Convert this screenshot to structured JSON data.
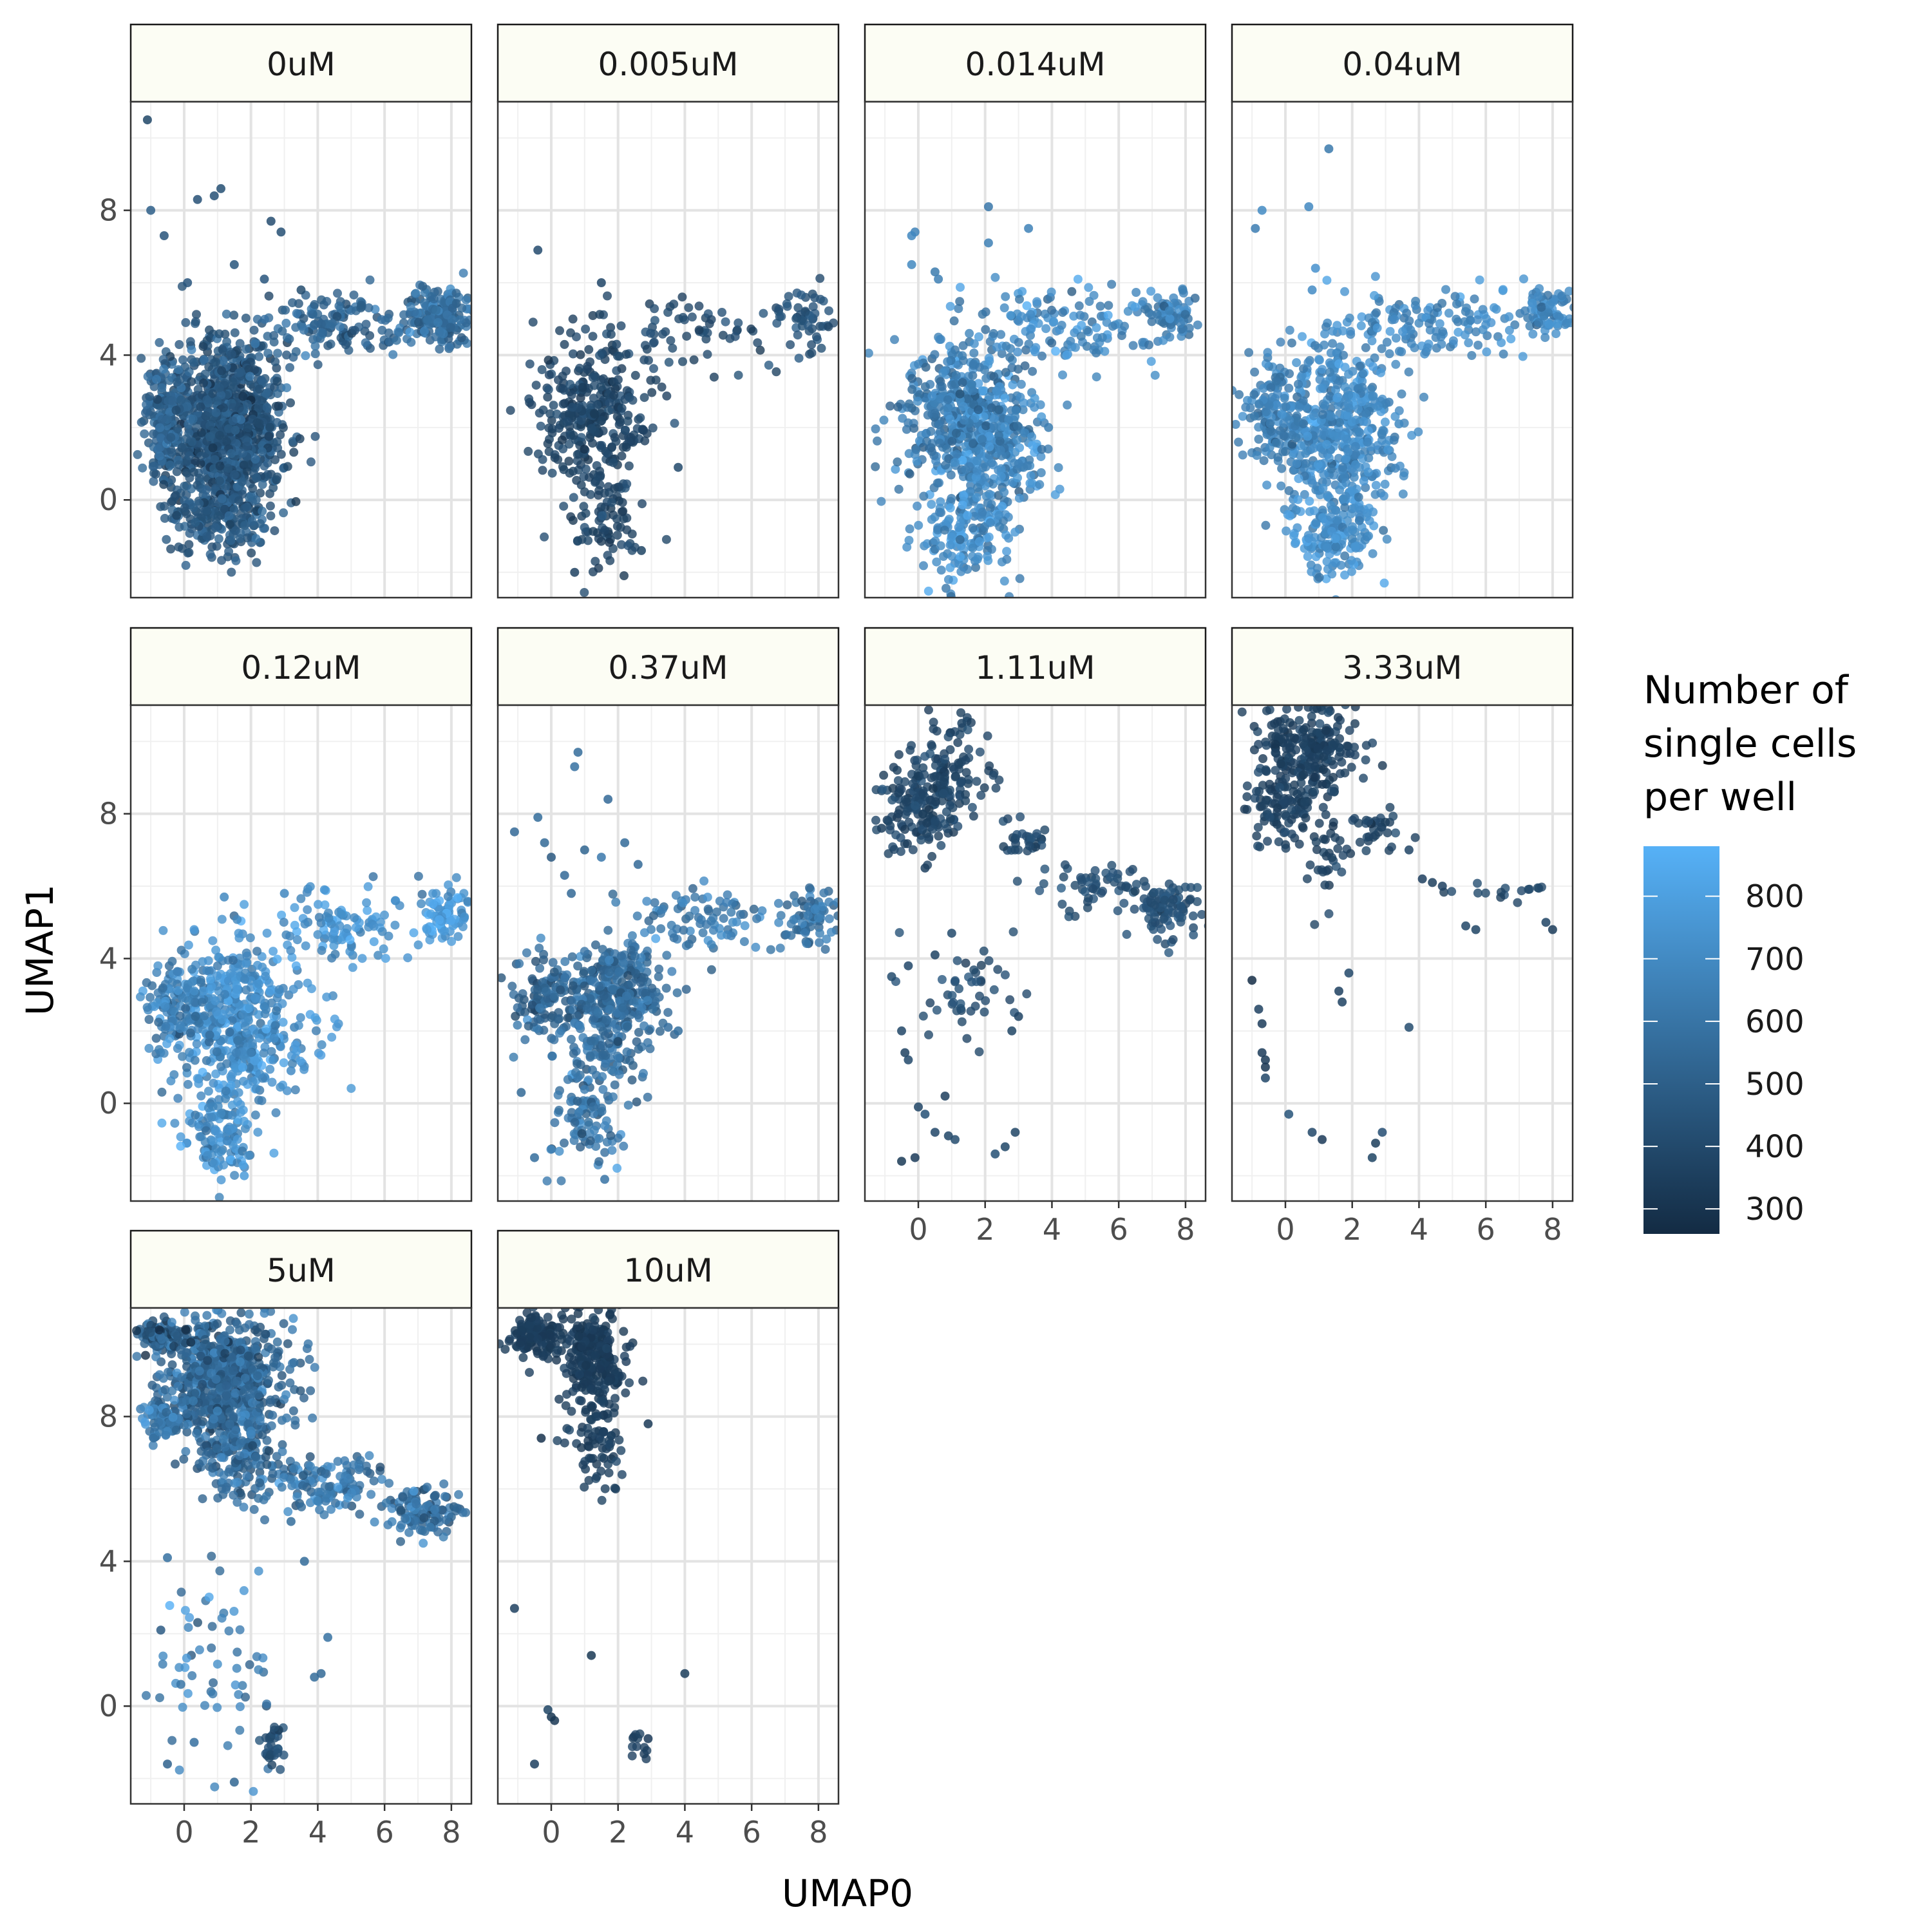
{
  "chart_data": {
    "type": "scatter",
    "layout": "facet-grid",
    "xlabel": "UMAP0",
    "ylabel": "UMAP1",
    "xlim": [
      -1.6,
      8.6
    ],
    "ylim": [
      -2.7,
      11.0
    ],
    "x_ticks": [
      0,
      2,
      4,
      6,
      8
    ],
    "y_ticks": [
      0,
      4,
      8
    ],
    "grid": true,
    "legend": {
      "title_lines": [
        "Number of",
        "single cells",
        "per well"
      ],
      "placement": "right",
      "min": 260,
      "max": 880,
      "ticks": [
        300,
        400,
        500,
        600,
        700,
        800
      ],
      "low_color": "#132B43",
      "high_color": "#56B1F7"
    },
    "panels": [
      {
        "label": "0uM",
        "color_value": 450,
        "clusters": [
          {
            "cx": 1.3,
            "cy": 2.0,
            "sx": 0.9,
            "sy": 1.3,
            "n": 950,
            "v": 450,
            "sv": 60
          },
          {
            "cx": -0.6,
            "cy": 2.3,
            "sx": 0.3,
            "sy": 0.8,
            "n": 160,
            "v": 520,
            "sv": 60
          },
          {
            "cx": 1.0,
            "cy": -0.5,
            "sx": 0.8,
            "sy": 0.5,
            "n": 160,
            "v": 470,
            "sv": 60
          },
          {
            "cx": 4.5,
            "cy": 4.9,
            "sx": 1.4,
            "sy": 0.45,
            "n": 140,
            "v": 520,
            "sv": 60
          },
          {
            "cx": 7.7,
            "cy": 5.1,
            "sx": 0.5,
            "sy": 0.4,
            "n": 190,
            "v": 560,
            "sv": 60
          }
        ],
        "points": [
          [
            -1.1,
            10.5
          ],
          [
            -1.0,
            8.0
          ],
          [
            -0.6,
            7.3
          ],
          [
            0.4,
            8.3
          ],
          [
            1.1,
            8.6
          ],
          [
            2.9,
            7.4
          ],
          [
            2.6,
            7.7
          ],
          [
            0.1,
            6.0
          ],
          [
            1.5,
            6.5
          ],
          [
            3.5,
            5.8
          ],
          [
            2.4,
            6.1
          ],
          [
            0.9,
            8.4
          ]
        ]
      },
      {
        "label": "0.005uM",
        "color_value": 380,
        "clusters": [
          {
            "cx": 1.3,
            "cy": 2.3,
            "sx": 0.9,
            "sy": 1.1,
            "n": 320,
            "v": 380,
            "sv": 35
          },
          {
            "cx": 1.5,
            "cy": -0.7,
            "sx": 0.5,
            "sy": 0.7,
            "n": 80,
            "v": 380,
            "sv": 35
          },
          {
            "cx": 4.4,
            "cy": 4.7,
            "sx": 1.3,
            "sy": 0.5,
            "n": 60,
            "v": 400,
            "sv": 35
          },
          {
            "cx": 7.6,
            "cy": 5.1,
            "sx": 0.5,
            "sy": 0.4,
            "n": 50,
            "v": 440,
            "sv": 35
          }
        ],
        "points": [
          [
            -0.4,
            6.9
          ],
          [
            1.5,
            6.0
          ],
          [
            3.8,
            0.9
          ],
          [
            2.7,
            -1.4
          ],
          [
            0.7,
            -2.0
          ]
        ]
      },
      {
        "label": "0.014uM",
        "color_value": 650,
        "clusters": [
          {
            "cx": 1.8,
            "cy": 1.9,
            "sx": 0.9,
            "sy": 1.3,
            "n": 520,
            "v": 680,
            "sv": 80
          },
          {
            "cx": 0.8,
            "cy": 2.5,
            "sx": 0.8,
            "sy": 0.8,
            "n": 150,
            "v": 620,
            "sv": 80
          },
          {
            "cx": 1.5,
            "cy": -1.0,
            "sx": 0.6,
            "sy": 0.6,
            "n": 130,
            "v": 720,
            "sv": 80
          },
          {
            "cx": 4.5,
            "cy": 4.8,
            "sx": 1.3,
            "sy": 0.5,
            "n": 120,
            "v": 700,
            "sv": 80
          },
          {
            "cx": 7.6,
            "cy": 5.1,
            "sx": 0.4,
            "sy": 0.35,
            "n": 70,
            "v": 640,
            "sv": 80
          }
        ],
        "points": [
          [
            -0.1,
            7.4
          ],
          [
            -0.2,
            7.3
          ],
          [
            2.1,
            8.1
          ],
          [
            2.1,
            7.1
          ],
          [
            3.3,
            7.5
          ],
          [
            0.5,
            6.3
          ],
          [
            0.6,
            6.1
          ],
          [
            -0.2,
            6.5
          ],
          [
            3.0,
            1.0
          ],
          [
            3.9,
            2.0
          ]
        ]
      },
      {
        "label": "0.04uM",
        "color_value": 680,
        "clusters": [
          {
            "cx": 1.6,
            "cy": 1.9,
            "sx": 0.9,
            "sy": 1.3,
            "n": 520,
            "v": 700,
            "sv": 60
          },
          {
            "cx": -0.4,
            "cy": 2.4,
            "sx": 0.5,
            "sy": 0.8,
            "n": 130,
            "v": 650,
            "sv": 60
          },
          {
            "cx": 1.4,
            "cy": -1.0,
            "sx": 0.6,
            "sy": 0.6,
            "n": 130,
            "v": 720,
            "sv": 60
          },
          {
            "cx": 4.6,
            "cy": 4.9,
            "sx": 1.3,
            "sy": 0.5,
            "n": 120,
            "v": 690,
            "sv": 60
          },
          {
            "cx": 7.8,
            "cy": 5.2,
            "sx": 0.4,
            "sy": 0.35,
            "n": 80,
            "v": 680,
            "sv": 60
          }
        ],
        "points": [
          [
            -0.7,
            8.0
          ],
          [
            -0.9,
            7.5
          ],
          [
            0.7,
            8.1
          ],
          [
            1.3,
            9.7
          ],
          [
            0.9,
            6.4
          ],
          [
            0.8,
            5.8
          ],
          [
            3.4,
            2.1
          ],
          [
            3.1,
            2.7
          ]
        ]
      },
      {
        "label": "0.12uM",
        "color_value": 720,
        "clusters": [
          {
            "cx": 1.6,
            "cy": 2.2,
            "sx": 0.9,
            "sy": 1.1,
            "n": 480,
            "v": 720,
            "sv": 70
          },
          {
            "cx": -0.2,
            "cy": 2.6,
            "sx": 0.5,
            "sy": 0.7,
            "n": 120,
            "v": 650,
            "sv": 70
          },
          {
            "cx": 1.2,
            "cy": -0.9,
            "sx": 0.6,
            "sy": 0.6,
            "n": 120,
            "v": 700,
            "sv": 70
          },
          {
            "cx": 4.6,
            "cy": 4.9,
            "sx": 1.3,
            "sy": 0.5,
            "n": 110,
            "v": 750,
            "sv": 70
          },
          {
            "cx": 7.8,
            "cy": 5.3,
            "sx": 0.4,
            "sy": 0.4,
            "n": 80,
            "v": 760,
            "sv": 70
          }
        ],
        "points": [
          [
            0.3,
            4.8
          ],
          [
            1.2,
            5.7
          ],
          [
            3.0,
            5.8
          ],
          [
            4.2,
            5.9
          ],
          [
            3.3,
            2.1
          ],
          [
            3.2,
            0.9
          ],
          [
            1.8,
            -2.0
          ]
        ]
      },
      {
        "label": "0.37uM",
        "color_value": 560,
        "clusters": [
          {
            "cx": 1.9,
            "cy": 3.1,
            "sx": 0.7,
            "sy": 0.7,
            "n": 300,
            "v": 560,
            "sv": 70
          },
          {
            "cx": -0.2,
            "cy": 2.9,
            "sx": 0.5,
            "sy": 0.6,
            "n": 110,
            "v": 530,
            "sv": 70
          },
          {
            "cx": 1.5,
            "cy": 1.5,
            "sx": 0.7,
            "sy": 0.6,
            "n": 90,
            "v": 560,
            "sv": 70
          },
          {
            "cx": 1.1,
            "cy": -0.5,
            "sx": 0.6,
            "sy": 0.6,
            "n": 90,
            "v": 600,
            "sv": 70
          },
          {
            "cx": 4.6,
            "cy": 5.0,
            "sx": 1.2,
            "sy": 0.45,
            "n": 90,
            "v": 620,
            "sv": 70
          },
          {
            "cx": 7.8,
            "cy": 5.2,
            "sx": 0.4,
            "sy": 0.4,
            "n": 70,
            "v": 600,
            "sv": 70
          }
        ],
        "points": [
          [
            -1.1,
            7.5
          ],
          [
            -0.4,
            7.9
          ],
          [
            -0.2,
            7.2
          ],
          [
            0.0,
            6.8
          ],
          [
            0.8,
            9.7
          ],
          [
            0.7,
            9.3
          ],
          [
            1.7,
            8.4
          ],
          [
            1.0,
            7.0
          ],
          [
            1.5,
            6.8
          ],
          [
            0.4,
            6.3
          ],
          [
            0.6,
            5.8
          ],
          [
            2.6,
            6.6
          ],
          [
            2.2,
            7.2
          ],
          [
            3.8,
            2.0
          ],
          [
            3.5,
            2.1
          ],
          [
            -0.5,
            -1.5
          ],
          [
            1.6,
            -2.1
          ],
          [
            -0.9,
            0.3
          ]
        ]
      },
      {
        "label": "1.11uM",
        "color_value": 380,
        "clusters": [
          {
            "cx": 0.1,
            "cy": 8.2,
            "sx": 0.6,
            "sy": 0.6,
            "n": 150,
            "v": 380,
            "sv": 30
          },
          {
            "cx": 1.1,
            "cy": 9.3,
            "sx": 0.6,
            "sy": 0.7,
            "n": 90,
            "v": 380,
            "sv": 30
          },
          {
            "cx": 3.2,
            "cy": 7.3,
            "sx": 0.4,
            "sy": 0.3,
            "n": 30,
            "v": 400,
            "sv": 30
          },
          {
            "cx": 5.3,
            "cy": 5.9,
            "sx": 1.0,
            "sy": 0.3,
            "n": 60,
            "v": 420,
            "sv": 30
          },
          {
            "cx": 7.5,
            "cy": 5.4,
            "sx": 0.45,
            "sy": 0.4,
            "n": 80,
            "v": 430,
            "sv": 30
          },
          {
            "cx": 1.6,
            "cy": 3.3,
            "sx": 0.9,
            "sy": 0.6,
            "n": 45,
            "v": 410,
            "sv": 30
          }
        ],
        "points": [
          [
            -0.9,
            7.8
          ],
          [
            -1.1,
            7.6
          ],
          [
            -0.6,
            8.0
          ],
          [
            1.3,
            10.5
          ],
          [
            0.2,
            6.5
          ],
          [
            1.0,
            4.7
          ],
          [
            0.5,
            4.1
          ],
          [
            -0.3,
            3.8
          ],
          [
            -0.5,
            2.0
          ],
          [
            -0.4,
            1.4
          ],
          [
            -0.3,
            1.2
          ],
          [
            0.0,
            -0.1
          ],
          [
            0.2,
            -0.3
          ],
          [
            0.8,
            0.2
          ],
          [
            0.5,
            -0.8
          ],
          [
            0.9,
            -0.9
          ],
          [
            1.1,
            -1.0
          ],
          [
            2.3,
            -1.4
          ],
          [
            2.6,
            -1.2
          ],
          [
            2.9,
            -0.8
          ],
          [
            -0.5,
            -1.6
          ],
          [
            -0.1,
            -1.5
          ],
          [
            3.0,
            2.4
          ],
          [
            2.8,
            2.0
          ],
          [
            -0.8,
            3.5
          ]
        ]
      },
      {
        "label": "3.33uM",
        "color_value": 360,
        "clusters": [
          {
            "cx": 0.8,
            "cy": 9.8,
            "sx": 0.7,
            "sy": 0.7,
            "n": 230,
            "v": 360,
            "sv": 25
          },
          {
            "cx": 0.0,
            "cy": 8.3,
            "sx": 0.6,
            "sy": 0.5,
            "n": 100,
            "v": 360,
            "sv": 25
          },
          {
            "cx": 1.2,
            "cy": 6.8,
            "sx": 0.3,
            "sy": 0.5,
            "n": 30,
            "v": 370,
            "sv": 25
          },
          {
            "cx": 2.8,
            "cy": 7.6,
            "sx": 0.5,
            "sy": 0.3,
            "n": 30,
            "v": 380,
            "sv": 25
          },
          {
            "cx": 6.2,
            "cy": 5.8,
            "sx": 0.8,
            "sy": 0.1,
            "n": 10,
            "v": 390,
            "sv": 25
          },
          {
            "cx": 7.6,
            "cy": 5.9,
            "sx": 0.3,
            "sy": 0.1,
            "n": 6,
            "v": 390,
            "sv": 25
          }
        ],
        "points": [
          [
            3.7,
            7.0
          ],
          [
            4.1,
            6.2
          ],
          [
            4.4,
            6.1
          ],
          [
            4.7,
            6.0
          ],
          [
            5.4,
            4.9
          ],
          [
            5.7,
            4.8
          ],
          [
            7.8,
            5.0
          ],
          [
            8.0,
            4.8
          ],
          [
            -1.0,
            3.4
          ],
          [
            -0.8,
            2.6
          ],
          [
            -0.7,
            2.2
          ],
          [
            -0.7,
            1.4
          ],
          [
            -0.6,
            1.2
          ],
          [
            -0.6,
            1.0
          ],
          [
            -0.6,
            0.7
          ],
          [
            0.1,
            -0.3
          ],
          [
            0.8,
            -0.8
          ],
          [
            1.1,
            -1.0
          ],
          [
            2.6,
            -1.5
          ],
          [
            2.9,
            -0.8
          ],
          [
            2.7,
            -1.1
          ],
          [
            1.6,
            3.1
          ],
          [
            1.7,
            2.8
          ],
          [
            1.9,
            3.6
          ],
          [
            3.7,
            2.1
          ]
        ]
      },
      {
        "label": "5uM",
        "color_value": 560,
        "clusters": [
          {
            "cx": 1.2,
            "cy": 9.0,
            "sx": 0.9,
            "sy": 0.9,
            "n": 700,
            "v": 540,
            "sv": 80
          },
          {
            "cx": -0.7,
            "cy": 10.2,
            "sx": 0.35,
            "sy": 0.2,
            "n": 100,
            "v": 480,
            "sv": 80
          },
          {
            "cx": -0.6,
            "cy": 7.9,
            "sx": 0.4,
            "sy": 0.3,
            "n": 80,
            "v": 600,
            "sv": 80
          },
          {
            "cx": 1.7,
            "cy": 6.8,
            "sx": 0.6,
            "sy": 0.5,
            "n": 120,
            "v": 560,
            "sv": 80
          },
          {
            "cx": 4.2,
            "cy": 6.2,
            "sx": 1.0,
            "sy": 0.4,
            "n": 130,
            "v": 620,
            "sv": 80
          },
          {
            "cx": 7.2,
            "cy": 5.4,
            "sx": 0.6,
            "sy": 0.35,
            "n": 110,
            "v": 580,
            "sv": 80
          },
          {
            "cx": 0.9,
            "cy": 1.2,
            "sx": 0.9,
            "sy": 1.4,
            "n": 60,
            "v": 640,
            "sv": 90
          },
          {
            "cx": 2.7,
            "cy": -1.1,
            "sx": 0.2,
            "sy": 0.3,
            "n": 30,
            "v": 430,
            "sv": 40
          }
        ],
        "points": [
          [
            3.2,
            5.1
          ],
          [
            3.6,
            4.0
          ],
          [
            4.3,
            1.9
          ],
          [
            3.9,
            0.8
          ],
          [
            4.1,
            0.9
          ],
          [
            -0.5,
            4.1
          ],
          [
            -0.7,
            2.1
          ],
          [
            -0.5,
            -1.6
          ],
          [
            1.5,
            -2.1
          ],
          [
            0.3,
            -1.0
          ],
          [
            -0.1,
            0.6
          ]
        ]
      },
      {
        "label": "10uM",
        "color_value": 340,
        "clusters": [
          {
            "cx": -0.5,
            "cy": 10.2,
            "sx": 0.4,
            "sy": 0.3,
            "n": 120,
            "v": 340,
            "sv": 20
          },
          {
            "cx": 1.2,
            "cy": 9.5,
            "sx": 0.5,
            "sy": 0.8,
            "n": 260,
            "v": 340,
            "sv": 20
          },
          {
            "cx": 1.4,
            "cy": 7.2,
            "sx": 0.4,
            "sy": 0.6,
            "n": 70,
            "v": 350,
            "sv": 20
          },
          {
            "cx": 2.6,
            "cy": -1.2,
            "sx": 0.2,
            "sy": 0.25,
            "n": 12,
            "v": 370,
            "sv": 20
          }
        ],
        "points": [
          [
            -1.1,
            2.7
          ],
          [
            1.2,
            1.4
          ],
          [
            4.0,
            0.9
          ],
          [
            -0.1,
            -0.1
          ],
          [
            0.0,
            -0.3
          ],
          [
            0.1,
            -0.4
          ],
          [
            -0.5,
            -1.6
          ],
          [
            2.9,
            -0.9
          ],
          [
            2.9,
            7.8
          ],
          [
            -0.3,
            7.4
          ]
        ]
      }
    ]
  }
}
